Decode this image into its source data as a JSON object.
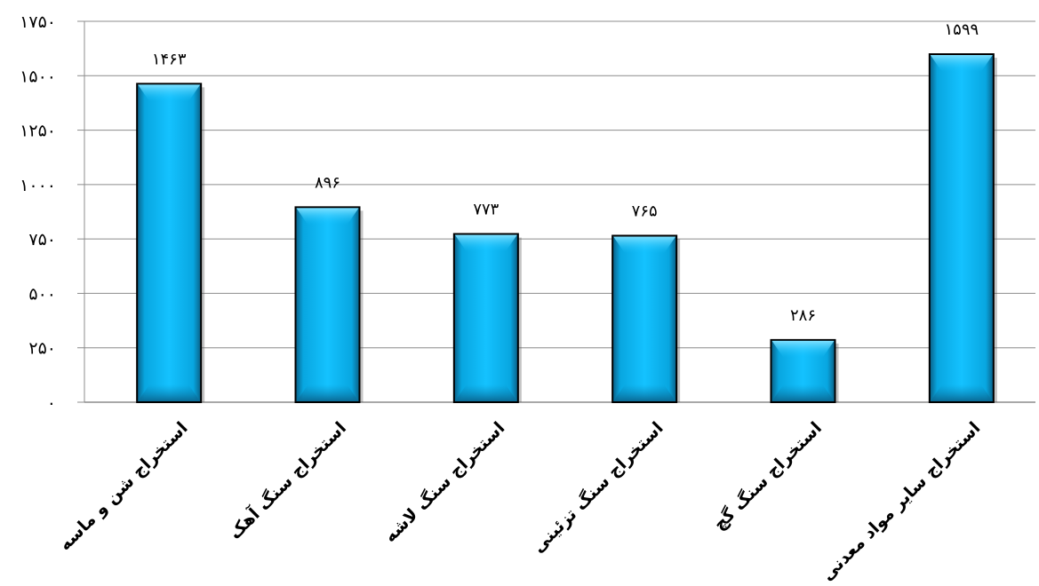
{
  "chart_data": {
    "type": "bar",
    "categories": [
      "استخراج شن و ماسه",
      "استخراج سنگ آهک",
      "استخراج سنگ لاشه",
      "استخراج سنگ تزئینی",
      "استخراج سنگ گچ",
      "استخراج سایر مواد معدنی"
    ],
    "values": [
      1463,
      896,
      773,
      765,
      286,
      1599
    ],
    "value_labels": [
      "۱۴۶۳",
      "۸۹۶",
      "۷۷۳",
      "۷۶۵",
      "۲۸۶",
      "۱۵۹۹"
    ],
    "y_ticks": [
      0,
      250,
      500,
      750,
      1000,
      1250,
      1500,
      1750
    ],
    "y_tick_labels": [
      "۰",
      "۲۵۰",
      "۵۰۰",
      "۷۵۰",
      "۱۰۰۰",
      "۱۲۵۰",
      "۱۵۰۰",
      "۱۷۵۰"
    ],
    "ylim": [
      0,
      1750
    ],
    "grid": "horizontal",
    "bar_color": "#00B0F0",
    "bar_edge_color": "#000000",
    "title": "",
    "xlabel": "",
    "ylabel": ""
  }
}
